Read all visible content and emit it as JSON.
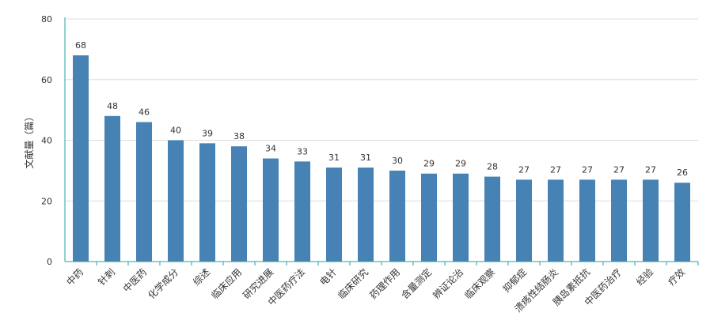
{
  "chart_data": {
    "type": "bar",
    "title": "",
    "xlabel": "",
    "ylabel": "文献量（篇）",
    "ylim": [
      0,
      80
    ],
    "yticks": [
      0,
      20,
      40,
      60,
      80
    ],
    "grid": true,
    "bar_color": "#4682b4",
    "axis_color": "#27a3a3",
    "categories": [
      "中药",
      "针刺",
      "中医药",
      "化学成分",
      "综述",
      "临床应用",
      "研究进展",
      "中医药疗法",
      "电针",
      "临床研究",
      "药理作用",
      "含量测定",
      "辨证论治",
      "临床观察",
      "抑郁症",
      "溃疡性结肠炎",
      "胰岛素抵抗",
      "中医药治疗",
      "经验",
      "疗效"
    ],
    "values": [
      68,
      48,
      46,
      40,
      39,
      38,
      34,
      33,
      31,
      31,
      30,
      29,
      29,
      28,
      27,
      27,
      27,
      27,
      27,
      26
    ]
  }
}
